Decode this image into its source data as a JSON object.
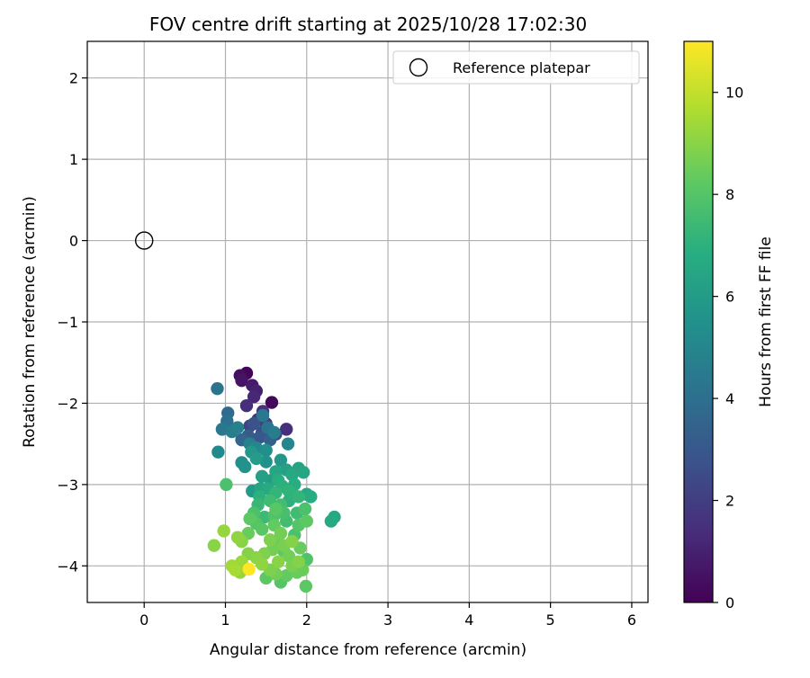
{
  "chart_data": {
    "type": "scatter",
    "title": "FOV centre drift starting at 2025/10/28 17:02:30",
    "xlabel": "Angular distance from reference (arcmin)",
    "ylabel": "Rotation from reference (arcmin)",
    "xlim": [
      -0.7,
      6.2
    ],
    "ylim": [
      -4.45,
      2.45
    ],
    "x_ticks": [
      0,
      1,
      2,
      3,
      4,
      5,
      6
    ],
    "y_ticks": [
      2,
      1,
      0,
      -1,
      -2,
      -3,
      -4
    ],
    "x_tick_labels": [
      "0",
      "1",
      "2",
      "3",
      "4",
      "5",
      "6"
    ],
    "y_tick_labels": [
      "2",
      "1",
      "0",
      "−1",
      "−2",
      "−3",
      "−4"
    ],
    "grid": true,
    "legend": {
      "placement": "top-right",
      "entries": [
        "Reference platepar"
      ]
    },
    "reference_point": {
      "x": 0,
      "y": 0
    },
    "colorbar": {
      "label": "Hours from first FF file",
      "range": [
        0,
        11
      ],
      "ticks": [
        0,
        2,
        4,
        6,
        8,
        10
      ],
      "tick_labels": [
        "0",
        "2",
        "4",
        "6",
        "8",
        "10"
      ],
      "colormap": "viridis"
    },
    "points": [
      {
        "x": 1.26,
        "y": -1.63,
        "h": 0.1
      },
      {
        "x": 1.18,
        "y": -1.66,
        "h": 0.4
      },
      {
        "x": 1.2,
        "y": -1.72,
        "h": 0.6
      },
      {
        "x": 1.33,
        "y": -1.78,
        "h": 0.8
      },
      {
        "x": 1.38,
        "y": -1.85,
        "h": 1.0
      },
      {
        "x": 1.35,
        "y": -1.92,
        "h": 1.2
      },
      {
        "x": 1.57,
        "y": -1.99,
        "h": 0.2
      },
      {
        "x": 1.26,
        "y": -2.03,
        "h": 1.4
      },
      {
        "x": 1.46,
        "y": -2.1,
        "h": 1.6
      },
      {
        "x": 1.4,
        "y": -2.2,
        "h": 1.8
      },
      {
        "x": 1.5,
        "y": -2.25,
        "h": 2.0
      },
      {
        "x": 1.3,
        "y": -2.28,
        "h": 2.2
      },
      {
        "x": 1.75,
        "y": -2.32,
        "h": 1.5
      },
      {
        "x": 1.62,
        "y": -2.38,
        "h": 2.4
      },
      {
        "x": 1.45,
        "y": -2.36,
        "h": 2.6
      },
      {
        "x": 1.35,
        "y": -2.25,
        "h": 2.8
      },
      {
        "x": 1.42,
        "y": -2.42,
        "h": 3.0
      },
      {
        "x": 1.28,
        "y": -2.4,
        "h": 3.2
      },
      {
        "x": 1.55,
        "y": -2.45,
        "h": 3.4
      },
      {
        "x": 1.2,
        "y": -2.45,
        "h": 3.6
      },
      {
        "x": 1.03,
        "y": -2.12,
        "h": 3.8
      },
      {
        "x": 1.02,
        "y": -2.22,
        "h": 4.0
      },
      {
        "x": 0.9,
        "y": -1.82,
        "h": 4.2
      },
      {
        "x": 0.96,
        "y": -2.32,
        "h": 4.4
      },
      {
        "x": 1.08,
        "y": -2.35,
        "h": 4.6
      },
      {
        "x": 1.15,
        "y": -2.3,
        "h": 4.8
      },
      {
        "x": 1.46,
        "y": -2.15,
        "h": 4.4
      },
      {
        "x": 1.52,
        "y": -2.3,
        "h": 4.2
      },
      {
        "x": 1.6,
        "y": -2.36,
        "h": 4.6
      },
      {
        "x": 1.77,
        "y": -2.5,
        "h": 5.0
      },
      {
        "x": 0.91,
        "y": -2.6,
        "h": 5.2
      },
      {
        "x": 1.2,
        "y": -2.73,
        "h": 5.4
      },
      {
        "x": 1.24,
        "y": -2.78,
        "h": 5.6
      },
      {
        "x": 1.32,
        "y": -2.6,
        "h": 5.8
      },
      {
        "x": 1.38,
        "y": -2.68,
        "h": 6.0
      },
      {
        "x": 1.5,
        "y": -2.72,
        "h": 5.5
      },
      {
        "x": 1.68,
        "y": -2.7,
        "h": 5.8
      },
      {
        "x": 1.33,
        "y": -3.08,
        "h": 5.9
      },
      {
        "x": 1.45,
        "y": -2.9,
        "h": 6.2
      },
      {
        "x": 1.56,
        "y": -2.95,
        "h": 6.0
      },
      {
        "x": 1.62,
        "y": -2.84,
        "h": 6.4
      },
      {
        "x": 1.75,
        "y": -2.82,
        "h": 6.2
      },
      {
        "x": 1.82,
        "y": -2.88,
        "h": 6.6
      },
      {
        "x": 1.9,
        "y": -2.8,
        "h": 6.3
      },
      {
        "x": 1.96,
        "y": -2.85,
        "h": 6.5
      },
      {
        "x": 1.85,
        "y": -3.0,
        "h": 6.8
      },
      {
        "x": 1.7,
        "y": -3.02,
        "h": 7.0
      },
      {
        "x": 1.62,
        "y": -3.1,
        "h": 7.2
      },
      {
        "x": 1.52,
        "y": -3.05,
        "h": 6.7
      },
      {
        "x": 1.42,
        "y": -3.15,
        "h": 7.0
      },
      {
        "x": 1.4,
        "y": -3.25,
        "h": 7.3
      },
      {
        "x": 1.55,
        "y": -3.2,
        "h": 7.5
      },
      {
        "x": 1.68,
        "y": -3.25,
        "h": 7.6
      },
      {
        "x": 1.78,
        "y": -3.2,
        "h": 7.0
      },
      {
        "x": 1.9,
        "y": -3.15,
        "h": 7.2
      },
      {
        "x": 2.0,
        "y": -3.12,
        "h": 6.6
      },
      {
        "x": 2.05,
        "y": -3.15,
        "h": 6.8
      },
      {
        "x": 1.98,
        "y": -3.3,
        "h": 7.8
      },
      {
        "x": 1.88,
        "y": -3.35,
        "h": 7.5
      },
      {
        "x": 1.72,
        "y": -3.35,
        "h": 7.7
      },
      {
        "x": 1.6,
        "y": -3.38,
        "h": 7.9
      },
      {
        "x": 1.48,
        "y": -3.4,
        "h": 7.4
      },
      {
        "x": 1.38,
        "y": -3.48,
        "h": 8.0
      },
      {
        "x": 1.3,
        "y": -3.42,
        "h": 8.2
      },
      {
        "x": 1.28,
        "y": -3.6,
        "h": 8.4
      },
      {
        "x": 1.45,
        "y": -3.55,
        "h": 8.1
      },
      {
        "x": 1.6,
        "y": -3.5,
        "h": 8.3
      },
      {
        "x": 1.75,
        "y": -3.45,
        "h": 7.6
      },
      {
        "x": 1.9,
        "y": -3.5,
        "h": 8.0
      },
      {
        "x": 2.0,
        "y": -3.45,
        "h": 8.2
      },
      {
        "x": 2.3,
        "y": -3.45,
        "h": 6.7
      },
      {
        "x": 2.34,
        "y": -3.4,
        "h": 6.6
      },
      {
        "x": 1.68,
        "y": -3.6,
        "h": 8.6
      },
      {
        "x": 1.55,
        "y": -3.68,
        "h": 8.8
      },
      {
        "x": 1.62,
        "y": -3.72,
        "h": 8.5
      },
      {
        "x": 1.72,
        "y": -3.75,
        "h": 8.7
      },
      {
        "x": 1.82,
        "y": -3.7,
        "h": 8.9
      },
      {
        "x": 1.92,
        "y": -3.78,
        "h": 8.4
      },
      {
        "x": 1.58,
        "y": -3.8,
        "h": 8.6
      },
      {
        "x": 1.48,
        "y": -3.85,
        "h": 8.8
      },
      {
        "x": 1.38,
        "y": -3.9,
        "h": 9.0
      },
      {
        "x": 1.28,
        "y": -3.85,
        "h": 8.9
      },
      {
        "x": 1.15,
        "y": -3.65,
        "h": 9.1
      },
      {
        "x": 1.2,
        "y": -3.7,
        "h": 9.0
      },
      {
        "x": 0.98,
        "y": -3.57,
        "h": 9.2
      },
      {
        "x": 0.86,
        "y": -3.75,
        "h": 9.0
      },
      {
        "x": 1.2,
        "y": -3.95,
        "h": 9.3
      },
      {
        "x": 1.08,
        "y": -4.0,
        "h": 9.4
      },
      {
        "x": 1.12,
        "y": -4.05,
        "h": 9.5
      },
      {
        "x": 1.18,
        "y": -4.08,
        "h": 9.2
      },
      {
        "x": 1.29,
        "y": -4.04,
        "h": 11.0
      },
      {
        "x": 1.45,
        "y": -3.98,
        "h": 9.1
      },
      {
        "x": 1.55,
        "y": -4.05,
        "h": 8.8
      },
      {
        "x": 1.5,
        "y": -4.15,
        "h": 8.2
      },
      {
        "x": 1.62,
        "y": -4.1,
        "h": 8.6
      },
      {
        "x": 1.68,
        "y": -4.2,
        "h": 8.0
      },
      {
        "x": 1.75,
        "y": -4.12,
        "h": 8.3
      },
      {
        "x": 1.82,
        "y": -4.0,
        "h": 8.7
      },
      {
        "x": 1.9,
        "y": -3.95,
        "h": 8.9
      },
      {
        "x": 1.95,
        "y": -4.05,
        "h": 8.5
      },
      {
        "x": 1.88,
        "y": -4.08,
        "h": 8.4
      },
      {
        "x": 2.0,
        "y": -3.92,
        "h": 7.9
      },
      {
        "x": 1.99,
        "y": -4.25,
        "h": 8.2
      },
      {
        "x": 1.78,
        "y": -3.88,
        "h": 8.6
      },
      {
        "x": 1.65,
        "y": -3.95,
        "h": 9.0
      },
      {
        "x": 1.72,
        "y": -3.82,
        "h": 8.2
      },
      {
        "x": 1.35,
        "y": -3.35,
        "h": 7.8
      },
      {
        "x": 1.43,
        "y": -3.05,
        "h": 6.4
      },
      {
        "x": 1.65,
        "y": -2.95,
        "h": 6.9
      },
      {
        "x": 1.78,
        "y": -3.08,
        "h": 7.1
      },
      {
        "x": 1.5,
        "y": -2.58,
        "h": 5.4
      },
      {
        "x": 1.38,
        "y": -2.55,
        "h": 5.0
      },
      {
        "x": 1.3,
        "y": -2.5,
        "h": 4.8
      },
      {
        "x": 1.01,
        "y": -3.0,
        "h": 7.8
      },
      {
        "x": 1.62,
        "y": -3.3,
        "h": 8.1
      },
      {
        "x": 1.85,
        "y": -3.62,
        "h": 7.8
      }
    ]
  }
}
